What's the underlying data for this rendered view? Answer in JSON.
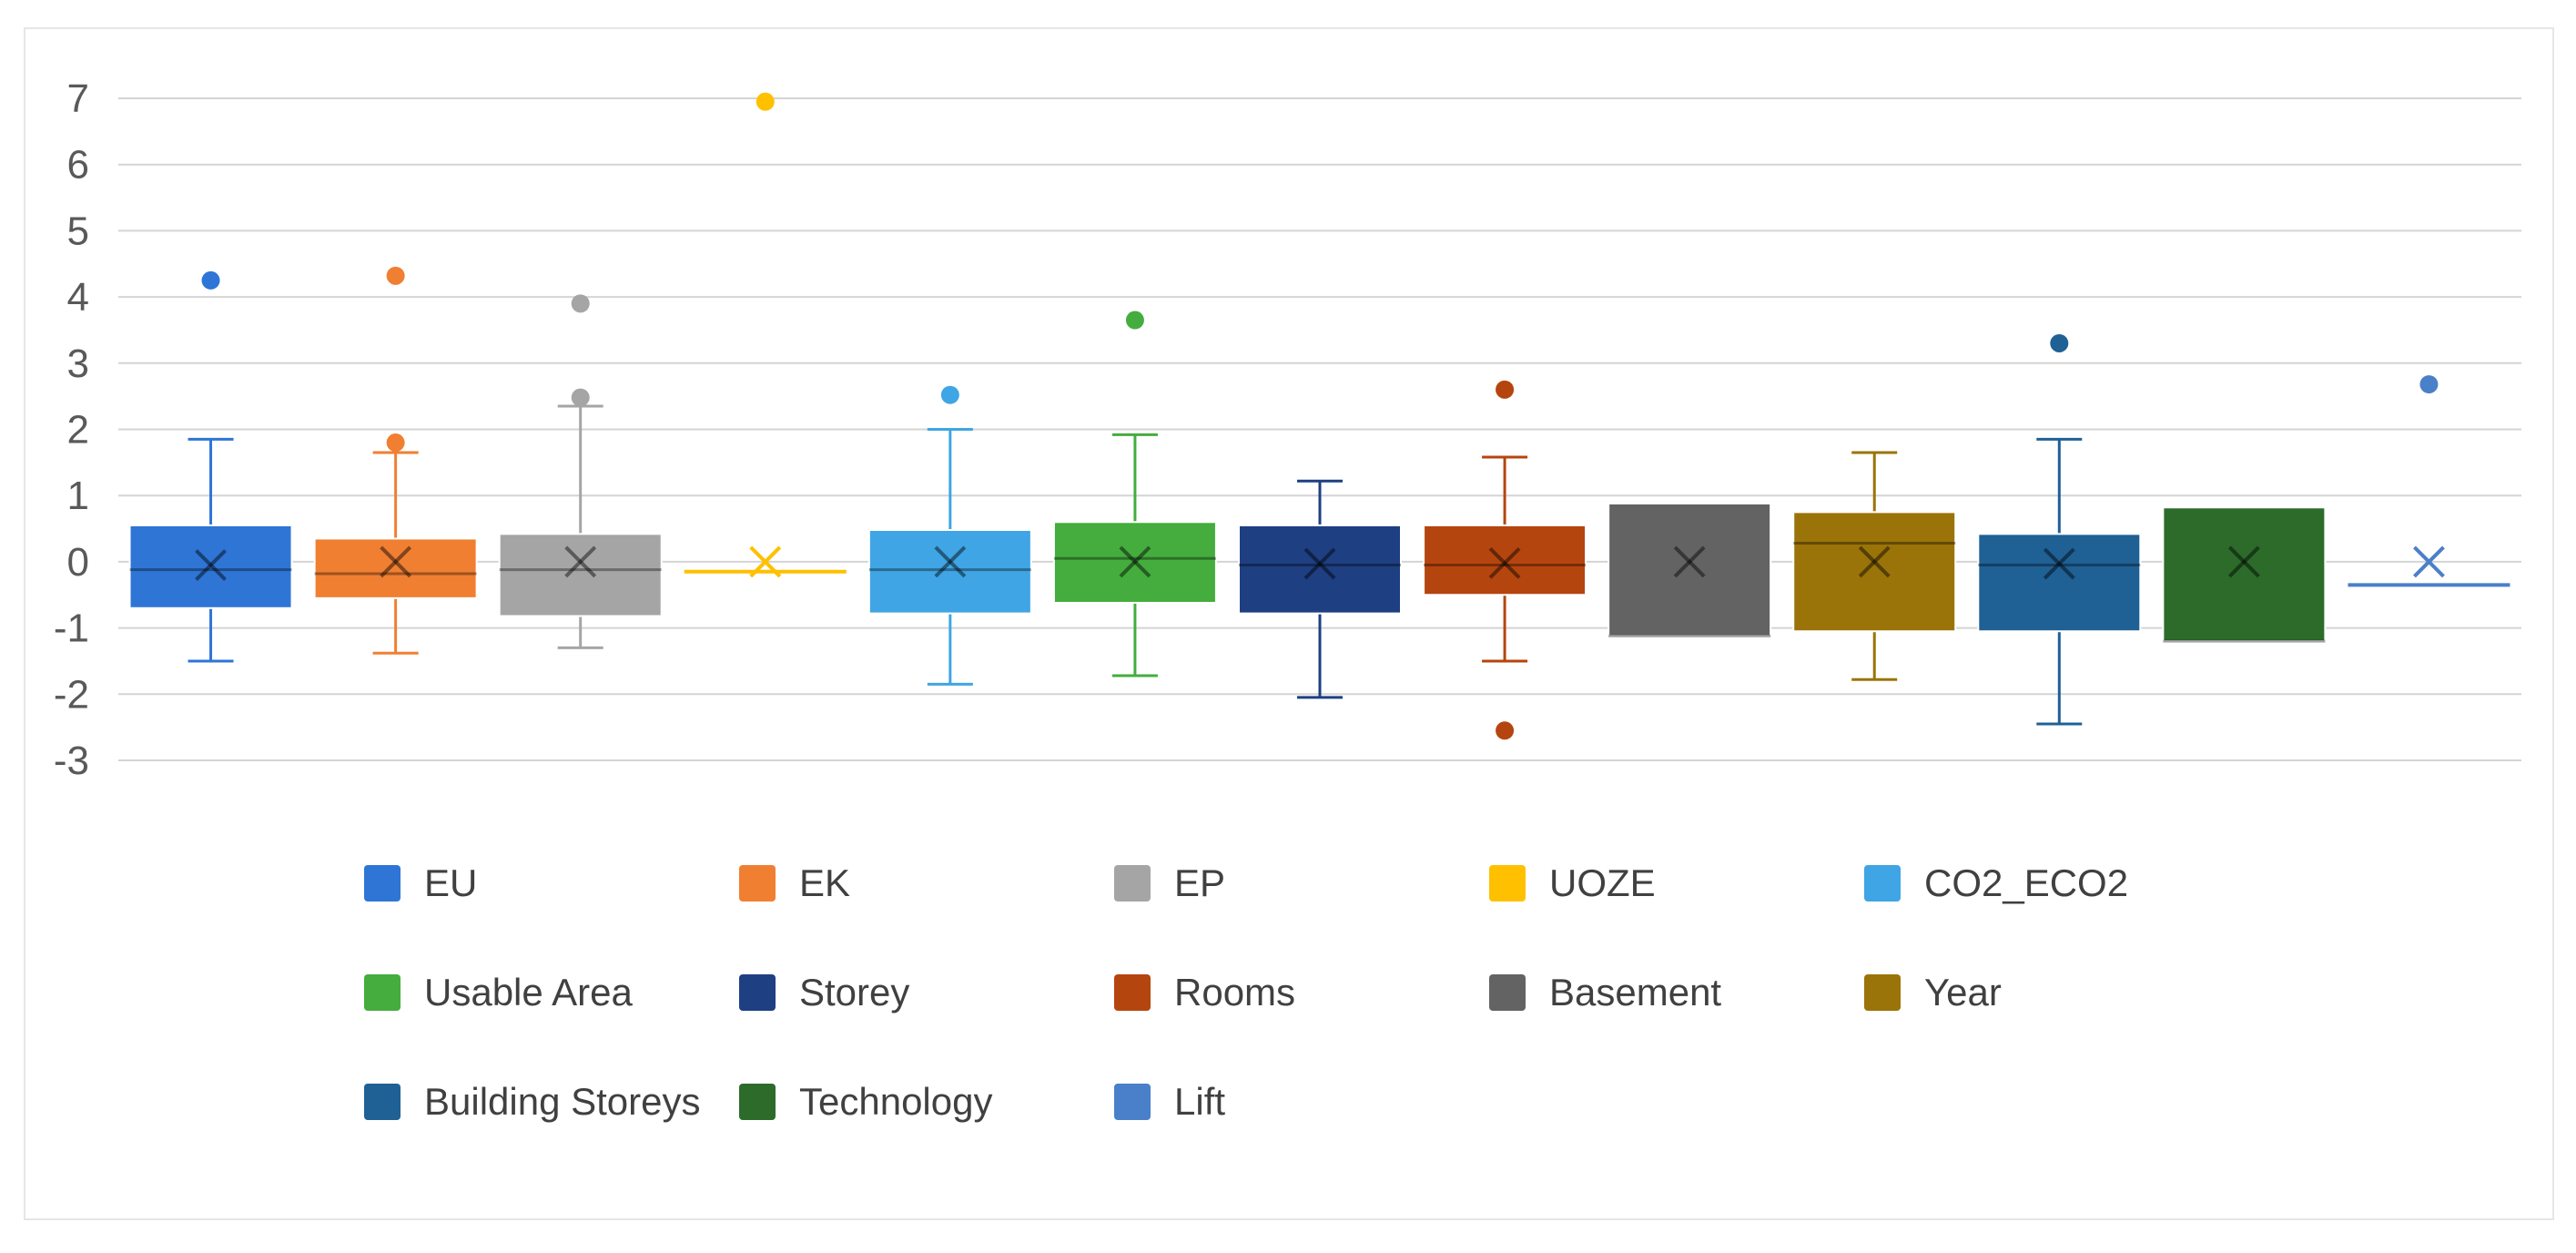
{
  "chart_data": {
    "type": "box",
    "ylim": [
      -3,
      7
    ],
    "yticks": [
      "7",
      "6",
      "5",
      "4",
      "3",
      "2",
      "1",
      "0",
      "-1",
      "-2",
      "-3"
    ],
    "grid": true,
    "legend_position": "bottom",
    "series": [
      {
        "name": "EU",
        "color": "#2E75D6",
        "q1": -0.7,
        "median": -0.12,
        "q3": 0.55,
        "min": -1.5,
        "max": 1.85,
        "mean": -0.05,
        "outliers": [
          4.25
        ]
      },
      {
        "name": "EK",
        "color": "#F07F32",
        "q1": -0.55,
        "median": -0.18,
        "q3": 0.35,
        "min": -1.38,
        "max": 1.65,
        "mean": 0.0,
        "outliers": [
          4.32,
          1.8
        ]
      },
      {
        "name": "EP",
        "color": "#A5A5A5",
        "q1": -0.82,
        "median": -0.12,
        "q3": 0.42,
        "min": -1.3,
        "max": 2.35,
        "mean": 0.0,
        "outliers": [
          3.9,
          2.48
        ]
      },
      {
        "name": "UOZE",
        "color": "#FFC000",
        "q1": -0.15,
        "median": -0.15,
        "q3": -0.15,
        "min": -0.15,
        "max": -0.15,
        "mean": 0.0,
        "outliers": [
          6.95
        ]
      },
      {
        "name": "CO2_ECO2",
        "color": "#3FA5E4",
        "q1": -0.78,
        "median": -0.12,
        "q3": 0.48,
        "min": -1.85,
        "max": 2.0,
        "mean": 0.0,
        "outliers": [
          2.52
        ]
      },
      {
        "name": "Usable Area",
        "color": "#44AD3E",
        "q1": -0.62,
        "median": 0.05,
        "q3": 0.6,
        "min": -1.72,
        "max": 1.92,
        "mean": 0.0,
        "outliers": [
          3.65
        ]
      },
      {
        "name": "Storey",
        "color": "#1E3F82",
        "q1": -0.78,
        "median": -0.05,
        "q3": 0.55,
        "min": -2.05,
        "max": 1.22,
        "mean": -0.03,
        "outliers": []
      },
      {
        "name": "Rooms",
        "color": "#B5450E",
        "q1": -0.5,
        "median": -0.05,
        "q3": 0.55,
        "min": -1.5,
        "max": 1.58,
        "mean": -0.02,
        "outliers": [
          2.6,
          -2.55
        ]
      },
      {
        "name": "Basement",
        "color": "#636363",
        "q1": -1.12,
        "median": -1.12,
        "q3": 0.88,
        "min": -1.12,
        "max": 0.88,
        "mean": 0.0,
        "outliers": []
      },
      {
        "name": "Year",
        "color": "#9A7408",
        "q1": -1.05,
        "median": 0.28,
        "q3": 0.75,
        "min": -1.78,
        "max": 1.65,
        "mean": 0.0,
        "outliers": []
      },
      {
        "name": "Building Storeys",
        "color": "#1F6095",
        "q1": -1.05,
        "median": -0.05,
        "q3": 0.42,
        "min": -2.45,
        "max": 1.85,
        "mean": -0.03,
        "outliers": [
          3.3
        ]
      },
      {
        "name": "Technology",
        "color": "#2C6B2A",
        "q1": -1.2,
        "median": -1.2,
        "q3": 0.82,
        "min": -1.2,
        "max": 0.82,
        "mean": 0.0,
        "outliers": []
      },
      {
        "name": "Lift",
        "color": "#4A7FC9",
        "q1": -0.35,
        "median": -0.35,
        "q3": -0.35,
        "min": -0.35,
        "max": -0.35,
        "mean": 0.0,
        "outliers": [
          2.68
        ]
      }
    ]
  }
}
